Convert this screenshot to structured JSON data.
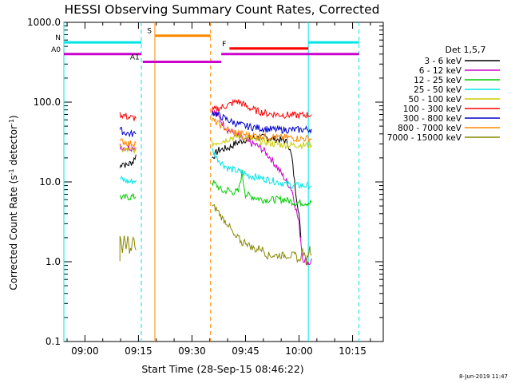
{
  "chart_data": {
    "type": "line",
    "title": "HESSI Observing Summary Count Rates, Corrected",
    "xlabel": "Start Time (28-Sep-15 08:46:22)",
    "ylabel_main": "Corrected Count Rate (s",
    "ylabel_sup1": "-1",
    "ylabel_mid": " detector",
    "ylabel_sup2": "-1",
    "ylabel_end": ")",
    "x_ticks": [
      "09:00",
      "09:15",
      "09:30",
      "09:45",
      "10:00",
      "10:15"
    ],
    "x_range_minutes": [
      -5.9,
      83.6
    ],
    "y_ticks": [
      "0.1",
      "1.0",
      "10.0",
      "100.0",
      "1000.0"
    ],
    "y_scale": "log",
    "ylim": [
      0.1,
      1000
    ],
    "legend_title": "Det 1,5,7",
    "series": [
      {
        "name": "3 - 6 keV",
        "color": "#000000",
        "segments": [
          [
            [
              9.8,
              15
            ],
            [
              10.5,
              18
            ],
            [
              11.5,
              16
            ],
            [
              12.5,
              17
            ],
            [
              13.5,
              18
            ],
            [
              14.3,
              22
            ]
          ],
          [
            [
              35.6,
              20
            ],
            [
              37.5,
              25
            ],
            [
              39,
              26
            ],
            [
              40.5,
              27
            ],
            [
              42,
              30
            ],
            [
              45,
              34
            ],
            [
              48,
              36
            ],
            [
              51,
              36
            ],
            [
              54,
              34
            ],
            [
              56,
              33
            ],
            [
              57,
              30
            ],
            [
              58,
              20
            ],
            [
              59,
              8
            ],
            [
              60,
              4
            ],
            [
              60.5,
              2
            ]
          ]
        ]
      },
      {
        "name": "6 - 12 keV",
        "color": "#cc00cc",
        "segments": [
          [
            [
              9.8,
              28
            ],
            [
              11,
              27
            ],
            [
              12.5,
              27
            ],
            [
              14.3,
              27
            ]
          ],
          [
            [
              35.6,
              80
            ],
            [
              37,
              70
            ],
            [
              38.5,
              55
            ],
            [
              40,
              45
            ],
            [
              42,
              40
            ],
            [
              44,
              35
            ],
            [
              46,
              31
            ],
            [
              48,
              29
            ],
            [
              50,
              25
            ],
            [
              52,
              20
            ],
            [
              54,
              15
            ],
            [
              56,
              11
            ],
            [
              58,
              8
            ],
            [
              60,
              3
            ],
            [
              61,
              1.1
            ],
            [
              63,
              0.95
            ],
            [
              63.5,
              1.1
            ]
          ]
        ]
      },
      {
        "name": "12 - 25 keV",
        "color": "#00cc00",
        "segments": [
          [
            [
              9.8,
              6.5
            ],
            [
              11,
              6.3
            ],
            [
              12.5,
              6.5
            ],
            [
              14.3,
              6.5
            ]
          ],
          [
            [
              35.6,
              10
            ],
            [
              37,
              9
            ],
            [
              38,
              8
            ],
            [
              39,
              7.5
            ],
            [
              40,
              8
            ],
            [
              41,
              7.5
            ],
            [
              43,
              7.5
            ],
            [
              44,
              13
            ],
            [
              45,
              7
            ],
            [
              47,
              6.5
            ],
            [
              50,
              6
            ],
            [
              53,
              6
            ],
            [
              56,
              6
            ],
            [
              59,
              5.5
            ],
            [
              62,
              5.5
            ],
            [
              63.5,
              5.5
            ]
          ]
        ]
      },
      {
        "name": "25 - 50 keV",
        "color": "#00e5e5",
        "segments": [
          [
            [
              9.8,
              11
            ],
            [
              11,
              10.5
            ],
            [
              12.5,
              10
            ],
            [
              14.3,
              10.5
            ]
          ],
          [
            [
              35.6,
              25
            ],
            [
              37,
              20
            ],
            [
              38.5,
              17
            ],
            [
              40,
              15
            ],
            [
              42,
              14
            ],
            [
              44,
              13
            ],
            [
              46,
              12
            ],
            [
              48,
              11.5
            ],
            [
              50,
              11
            ],
            [
              52,
              10.5
            ],
            [
              54,
              10
            ],
            [
              56,
              9.5
            ],
            [
              58,
              9
            ],
            [
              60,
              9
            ],
            [
              62,
              9
            ],
            [
              63.5,
              9
            ]
          ]
        ]
      },
      {
        "name": "50 - 100 keV",
        "color": "#cccc00",
        "segments": [
          [
            [
              9.8,
              26
            ],
            [
              11,
              25
            ],
            [
              12.5,
              25
            ],
            [
              14.3,
              25
            ]
          ],
          [
            [
              35.6,
              30
            ],
            [
              37.5,
              32
            ],
            [
              39,
              33
            ],
            [
              41,
              36
            ],
            [
              43,
              37
            ],
            [
              45,
              36
            ],
            [
              47,
              34
            ],
            [
              50,
              32
            ],
            [
              53,
              30
            ],
            [
              56,
              29
            ],
            [
              59,
              29
            ],
            [
              62,
              29
            ],
            [
              63.5,
              29
            ]
          ]
        ]
      },
      {
        "name": "100 - 300 keV",
        "color": "#ff0000",
        "segments": [
          [
            [
              9.8,
              70
            ],
            [
              11,
              68
            ],
            [
              12.5,
              64
            ],
            [
              14.3,
              63
            ]
          ],
          [
            [
              35.6,
              78
            ],
            [
              37,
              82
            ],
            [
              39,
              88
            ],
            [
              41,
              95
            ],
            [
              42.5,
              103
            ],
            [
              44,
              96
            ],
            [
              46,
              85
            ],
            [
              48,
              78
            ],
            [
              51,
              72
            ],
            [
              54,
              70
            ],
            [
              57,
              69
            ],
            [
              60,
              68
            ],
            [
              63.5,
              70
            ]
          ]
        ]
      },
      {
        "name": "300 - 800 keV",
        "color": "#0000cc",
        "segments": [
          [
            [
              9.8,
              45
            ],
            [
              11,
              42
            ],
            [
              12.5,
              40
            ],
            [
              14.3,
              40
            ]
          ],
          [
            [
              35.6,
              75
            ],
            [
              37,
              70
            ],
            [
              39,
              63
            ],
            [
              41,
              57
            ],
            [
              43,
              53
            ],
            [
              45,
              50
            ],
            [
              48,
              48
            ],
            [
              51,
              46
            ],
            [
              54,
              45
            ],
            [
              57,
              45
            ],
            [
              60,
              45
            ],
            [
              63.5,
              46
            ]
          ]
        ]
      },
      {
        "name": "800 - 7000 keV",
        "color": "#ff8800",
        "segments": [
          [
            [
              9.8,
              32
            ],
            [
              11,
              32
            ],
            [
              12.5,
              30
            ],
            [
              14.3,
              31
            ]
          ],
          [
            [
              35.6,
              60
            ],
            [
              37,
              55
            ],
            [
              39,
              48
            ],
            [
              41,
              43
            ],
            [
              43,
              41
            ],
            [
              45,
              39
            ],
            [
              48,
              38
            ],
            [
              51,
              37
            ],
            [
              54,
              36
            ],
            [
              57,
              36
            ],
            [
              60,
              35
            ],
            [
              63.5,
              35
            ]
          ]
        ]
      },
      {
        "name": "7000 - 15000 keV",
        "color": "#888800",
        "segments": [
          [
            [
              9.8,
              1.0
            ],
            [
              9.8,
              2
            ],
            [
              10.5,
              1.4
            ],
            [
              11,
              2
            ],
            [
              11.5,
              1.4
            ],
            [
              12,
              2
            ],
            [
              12.5,
              1.4
            ],
            [
              13,
              1.4
            ],
            [
              13.5,
              2
            ],
            [
              14.3,
              1.4
            ]
          ],
          [
            [
              35.6,
              5
            ],
            [
              37,
              4.5
            ],
            [
              38.5,
              3.5
            ],
            [
              40,
              3
            ],
            [
              41,
              2.5
            ],
            [
              42,
              2
            ],
            [
              43,
              2
            ],
            [
              44,
              1.7
            ],
            [
              45,
              1.8
            ],
            [
              46,
              1.6
            ],
            [
              47,
              1.5
            ],
            [
              48,
              1.4
            ],
            [
              49,
              1.5
            ],
            [
              50,
              1.4
            ],
            [
              51,
              1.2
            ],
            [
              52,
              1.2
            ],
            [
              53,
              1.2
            ],
            [
              54,
              1.2
            ],
            [
              55,
              1.2
            ],
            [
              56,
              1.2
            ],
            [
              57,
              1.2
            ],
            [
              58,
              1.2
            ],
            [
              59,
              1.2
            ],
            [
              60,
              1.0
            ],
            [
              61,
              1.4
            ],
            [
              62,
              1.0
            ],
            [
              63,
              1.5
            ],
            [
              63.5,
              1.2
            ]
          ]
        ]
      }
    ],
    "vertical_lines": [
      {
        "x": -5.9,
        "color": "#00e5e5",
        "dash": false
      },
      {
        "x": 15.8,
        "color": "#00e5e5",
        "dash": true
      },
      {
        "x": 19.6,
        "color": "#ff8800",
        "dash": false
      },
      {
        "x": 35.2,
        "color": "#ff8800",
        "dash": true
      },
      {
        "x": 62.6,
        "color": "#00e5e5",
        "dash": false
      },
      {
        "x": 76.8,
        "color": "#00e5e5",
        "dash": true
      }
    ],
    "flag_bars": [
      {
        "label": "S",
        "label_color": "#ff8800",
        "y": 680,
        "color": "#ff8800",
        "from": 19.6,
        "to": 35.2
      },
      {
        "label": "N",
        "label_color": "#00e5e5",
        "y": 560,
        "color": "#00e5e5",
        "from": -5.9,
        "to": 15.8
      },
      {
        "label": "",
        "label_color": "#00e5e5",
        "y": 560,
        "color": "#00e5e5",
        "from": 62.6,
        "to": 76.8
      },
      {
        "label": "F",
        "label_color": "#ff0000",
        "y": 470,
        "color": "#ff0000",
        "from": 40.5,
        "to": 62.6
      },
      {
        "label": "A0",
        "label_color": "#cc00cc",
        "y": 400,
        "color": "#cc00cc",
        "from": -5.9,
        "to": 15.8
      },
      {
        "label": "",
        "label_color": "#cc00cc",
        "y": 400,
        "color": "#cc00cc",
        "from": 38.2,
        "to": 76.8
      },
      {
        "label": "A1",
        "label_color": "#cc00cc",
        "y": 320,
        "color": "#cc00cc",
        "from": 16.2,
        "to": 38.2
      }
    ],
    "footer_date": "8-Jun-2019 11:47"
  }
}
